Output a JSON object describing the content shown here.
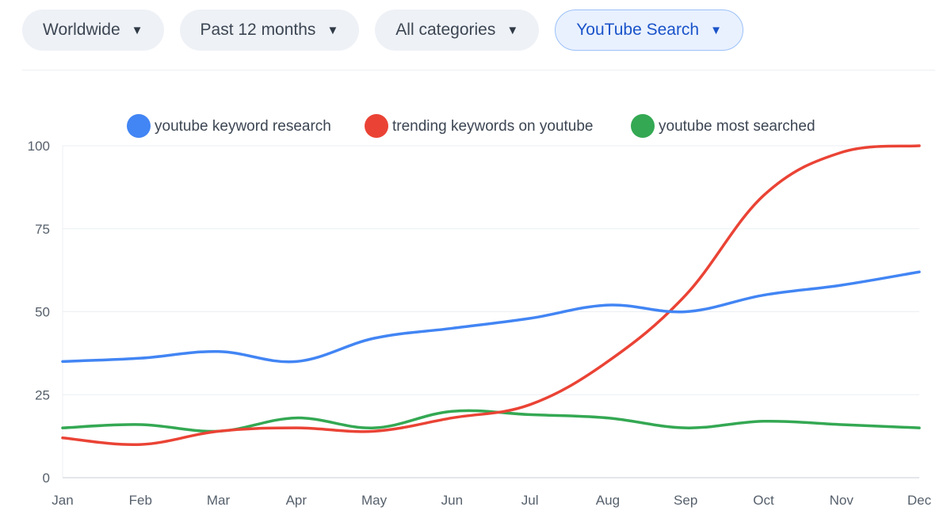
{
  "filters": [
    {
      "label": "Worldwide",
      "caret": "▼",
      "active": false
    },
    {
      "label": "Past 12 months",
      "caret": "▼",
      "active": false
    },
    {
      "label": "All categories",
      "caret": "▼",
      "active": false
    },
    {
      "label": "YouTube Search",
      "caret": "▼",
      "active": true
    }
  ],
  "chart_data": {
    "type": "line",
    "x": [
      "Jan",
      "Feb",
      "Mar",
      "Apr",
      "May",
      "Jun",
      "Jul",
      "Aug",
      "Sep",
      "Oct",
      "Nov",
      "Dec"
    ],
    "ylim": [
      0,
      100
    ],
    "yticks": [
      0,
      25,
      50,
      75,
      100
    ],
    "grid": true,
    "legend_position": "top",
    "series": [
      {
        "name": "youtube keyword research",
        "color": "#4285f4",
        "values": [
          35,
          36,
          38,
          35,
          42,
          45,
          48,
          52,
          50,
          55,
          58,
          62
        ]
      },
      {
        "name": "trending keywords on youtube",
        "color": "#ea4335",
        "values": [
          12,
          10,
          14,
          15,
          14,
          18,
          22,
          35,
          55,
          85,
          98,
          100
        ]
      },
      {
        "name": "youtube most searched",
        "color": "#34a853",
        "values": [
          15,
          16,
          14,
          18,
          15,
          20,
          19,
          18,
          15,
          17,
          16,
          15
        ]
      }
    ]
  }
}
